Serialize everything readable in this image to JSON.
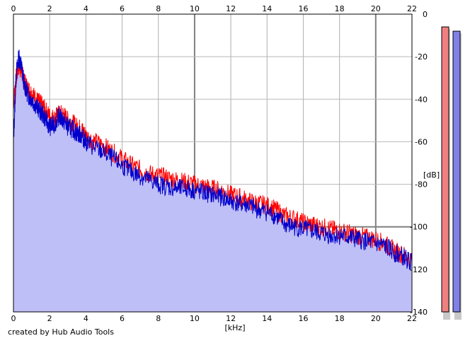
{
  "footer": {
    "credit": "created by Hub Audio Tools"
  },
  "chart_data": {
    "type": "area",
    "xlabel": "[kHz]",
    "ylabel": "[dB]",
    "xlim": [
      0,
      22
    ],
    "ylim": [
      -140,
      0
    ],
    "x_ticks": [
      0,
      2,
      4,
      6,
      8,
      10,
      12,
      14,
      16,
      18,
      20,
      22
    ],
    "y_ticks": [
      0,
      -20,
      -40,
      -60,
      -80,
      -100,
      -120,
      -140
    ],
    "grid": true,
    "x_tick_labels_top_and_bottom": true,
    "y_axis_side": "right",
    "series": [
      {
        "color": "#ff0000",
        "x": [
          0.0,
          0.15,
          0.3,
          0.45,
          0.6,
          0.8,
          1.0,
          1.25,
          1.5,
          1.75,
          2.0,
          2.25,
          2.5,
          2.75,
          3.0,
          3.25,
          3.5,
          3.75,
          4.0,
          4.5,
          5.0,
          5.5,
          6.0,
          6.5,
          7.0,
          7.5,
          8.0,
          8.5,
          9.0,
          9.5,
          10.0,
          10.5,
          11.0,
          11.5,
          12.0,
          12.5,
          13.0,
          13.5,
          14.0,
          14.5,
          15.0,
          15.5,
          16.0,
          16.5,
          17.0,
          17.5,
          18.0,
          18.5,
          19.0,
          19.5,
          20.0,
          20.5,
          21.0,
          21.5,
          22.0
        ],
        "y": [
          -42,
          -30,
          -24,
          -27,
          -32,
          -35,
          -37,
          -40,
          -42,
          -45,
          -48,
          -49,
          -47,
          -47,
          -50,
          -51,
          -53,
          -54,
          -57,
          -60,
          -62,
          -65,
          -68,
          -71,
          -73,
          -75,
          -76,
          -77,
          -78,
          -79,
          -80,
          -81,
          -82,
          -83,
          -85,
          -86,
          -88,
          -89,
          -90,
          -92,
          -95,
          -96,
          -98,
          -99,
          -100,
          -101,
          -102,
          -103,
          -104,
          -105,
          -106,
          -108,
          -111,
          -113,
          -116
        ]
      },
      {
        "color": "#0000cc",
        "x": [
          0.0,
          0.15,
          0.3,
          0.45,
          0.6,
          0.8,
          1.0,
          1.25,
          1.5,
          1.75,
          2.0,
          2.25,
          2.5,
          2.75,
          3.0,
          3.25,
          3.5,
          3.75,
          4.0,
          4.5,
          5.0,
          5.5,
          6.0,
          6.5,
          7.0,
          7.5,
          8.0,
          8.5,
          9.0,
          9.5,
          10.0,
          10.5,
          11.0,
          11.5,
          12.0,
          12.5,
          13.0,
          13.5,
          14.0,
          14.5,
          15.0,
          15.5,
          16.0,
          16.5,
          17.0,
          17.5,
          18.0,
          18.5,
          19.0,
          19.5,
          20.0,
          20.5,
          21.0,
          21.5,
          22.0
        ],
        "y": [
          -60,
          -28,
          -20,
          -25,
          -33,
          -38,
          -40,
          -43,
          -46,
          -49,
          -53,
          -52,
          -48,
          -50,
          -53,
          -54,
          -56,
          -57,
          -60,
          -63,
          -65,
          -68,
          -71,
          -74,
          -76,
          -78,
          -80,
          -81,
          -82,
          -82,
          -83,
          -84,
          -85,
          -86,
          -88,
          -89,
          -90,
          -92,
          -93,
          -95,
          -99,
          -100,
          -101,
          -102,
          -103,
          -104,
          -104,
          -105,
          -106,
          -107,
          -108,
          -109,
          -112,
          -114,
          -117
        ]
      }
    ],
    "fill_color": "#bfbff7",
    "level_meters": [
      {
        "color": "#f08080",
        "value_db": -6
      },
      {
        "color": "#8080e8",
        "value_db": -8
      }
    ]
  }
}
